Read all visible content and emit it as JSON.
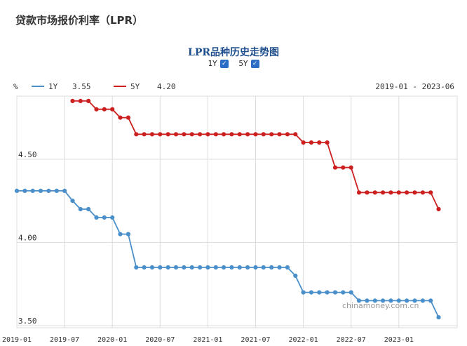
{
  "page": {
    "title": "贷款市场报价利率（LPR）",
    "chart_title": "LPR品种历史走势图",
    "toggles": [
      {
        "label": "1Y",
        "checked": true
      },
      {
        "label": "5Y",
        "checked": true
      }
    ],
    "watermark": "chinamoney.com.cn"
  },
  "colors": {
    "series_1y": "#4a8fc9",
    "series_5y": "#cc2020",
    "grid": "#dcdcdc",
    "axis_text": "#333333",
    "checkbox": "#2b6cc4"
  },
  "chart_data": {
    "type": "line",
    "title": "LPR品种历史走势图",
    "ylabel": "%",
    "xlabel": "",
    "date_range": "2019-01 - 2023-06",
    "x_tick_labels": [
      "2019-01",
      "2019-07",
      "2020-01",
      "2020-07",
      "2021-01",
      "2021-07",
      "2022-01",
      "2022-07",
      "2023-01"
    ],
    "y_tick_labels": [
      "3.50",
      "4.00",
      "4.50"
    ],
    "ylim": [
      3.5,
      4.9
    ],
    "grid": true,
    "legend_position": "top-left",
    "series": [
      {
        "name": "1Y",
        "latest": "3.55",
        "color": "#4a8fc9",
        "points": [
          [
            "2019-01",
            4.31
          ],
          [
            "2019-02",
            4.31
          ],
          [
            "2019-03",
            4.31
          ],
          [
            "2019-04",
            4.31
          ],
          [
            "2019-05",
            4.31
          ],
          [
            "2019-06",
            4.31
          ],
          [
            "2019-07",
            4.31
          ],
          [
            "2019-08",
            4.25
          ],
          [
            "2019-09",
            4.2
          ],
          [
            "2019-10",
            4.2
          ],
          [
            "2019-11",
            4.15
          ],
          [
            "2019-12",
            4.15
          ],
          [
            "2020-01",
            4.15
          ],
          [
            "2020-02",
            4.05
          ],
          [
            "2020-03",
            4.05
          ],
          [
            "2020-04",
            3.85
          ],
          [
            "2020-05",
            3.85
          ],
          [
            "2020-06",
            3.85
          ],
          [
            "2020-07",
            3.85
          ],
          [
            "2020-08",
            3.85
          ],
          [
            "2020-09",
            3.85
          ],
          [
            "2020-10",
            3.85
          ],
          [
            "2020-11",
            3.85
          ],
          [
            "2020-12",
            3.85
          ],
          [
            "2021-01",
            3.85
          ],
          [
            "2021-02",
            3.85
          ],
          [
            "2021-03",
            3.85
          ],
          [
            "2021-04",
            3.85
          ],
          [
            "2021-05",
            3.85
          ],
          [
            "2021-06",
            3.85
          ],
          [
            "2021-07",
            3.85
          ],
          [
            "2021-08",
            3.85
          ],
          [
            "2021-09",
            3.85
          ],
          [
            "2021-10",
            3.85
          ],
          [
            "2021-11",
            3.85
          ],
          [
            "2021-12",
            3.8
          ],
          [
            "2022-01",
            3.7
          ],
          [
            "2022-02",
            3.7
          ],
          [
            "2022-03",
            3.7
          ],
          [
            "2022-04",
            3.7
          ],
          [
            "2022-05",
            3.7
          ],
          [
            "2022-06",
            3.7
          ],
          [
            "2022-07",
            3.7
          ],
          [
            "2022-08",
            3.65
          ],
          [
            "2022-09",
            3.65
          ],
          [
            "2022-10",
            3.65
          ],
          [
            "2022-11",
            3.65
          ],
          [
            "2022-12",
            3.65
          ],
          [
            "2023-01",
            3.65
          ],
          [
            "2023-02",
            3.65
          ],
          [
            "2023-03",
            3.65
          ],
          [
            "2023-04",
            3.65
          ],
          [
            "2023-05",
            3.65
          ],
          [
            "2023-06",
            3.55
          ]
        ]
      },
      {
        "name": "5Y",
        "latest": "4.20",
        "color": "#cc2020",
        "points": [
          [
            "2019-08",
            4.85
          ],
          [
            "2019-09",
            4.85
          ],
          [
            "2019-10",
            4.85
          ],
          [
            "2019-11",
            4.8
          ],
          [
            "2019-12",
            4.8
          ],
          [
            "2020-01",
            4.8
          ],
          [
            "2020-02",
            4.75
          ],
          [
            "2020-03",
            4.75
          ],
          [
            "2020-04",
            4.65
          ],
          [
            "2020-05",
            4.65
          ],
          [
            "2020-06",
            4.65
          ],
          [
            "2020-07",
            4.65
          ],
          [
            "2020-08",
            4.65
          ],
          [
            "2020-09",
            4.65
          ],
          [
            "2020-10",
            4.65
          ],
          [
            "2020-11",
            4.65
          ],
          [
            "2020-12",
            4.65
          ],
          [
            "2021-01",
            4.65
          ],
          [
            "2021-02",
            4.65
          ],
          [
            "2021-03",
            4.65
          ],
          [
            "2021-04",
            4.65
          ],
          [
            "2021-05",
            4.65
          ],
          [
            "2021-06",
            4.65
          ],
          [
            "2021-07",
            4.65
          ],
          [
            "2021-08",
            4.65
          ],
          [
            "2021-09",
            4.65
          ],
          [
            "2021-10",
            4.65
          ],
          [
            "2021-11",
            4.65
          ],
          [
            "2021-12",
            4.65
          ],
          [
            "2022-01",
            4.6
          ],
          [
            "2022-02",
            4.6
          ],
          [
            "2022-03",
            4.6
          ],
          [
            "2022-04",
            4.6
          ],
          [
            "2022-05",
            4.45
          ],
          [
            "2022-06",
            4.45
          ],
          [
            "2022-07",
            4.45
          ],
          [
            "2022-08",
            4.3
          ],
          [
            "2022-09",
            4.3
          ],
          [
            "2022-10",
            4.3
          ],
          [
            "2022-11",
            4.3
          ],
          [
            "2022-12",
            4.3
          ],
          [
            "2023-01",
            4.3
          ],
          [
            "2023-02",
            4.3
          ],
          [
            "2023-03",
            4.3
          ],
          [
            "2023-04",
            4.3
          ],
          [
            "2023-05",
            4.3
          ],
          [
            "2023-06",
            4.2
          ]
        ]
      }
    ]
  }
}
